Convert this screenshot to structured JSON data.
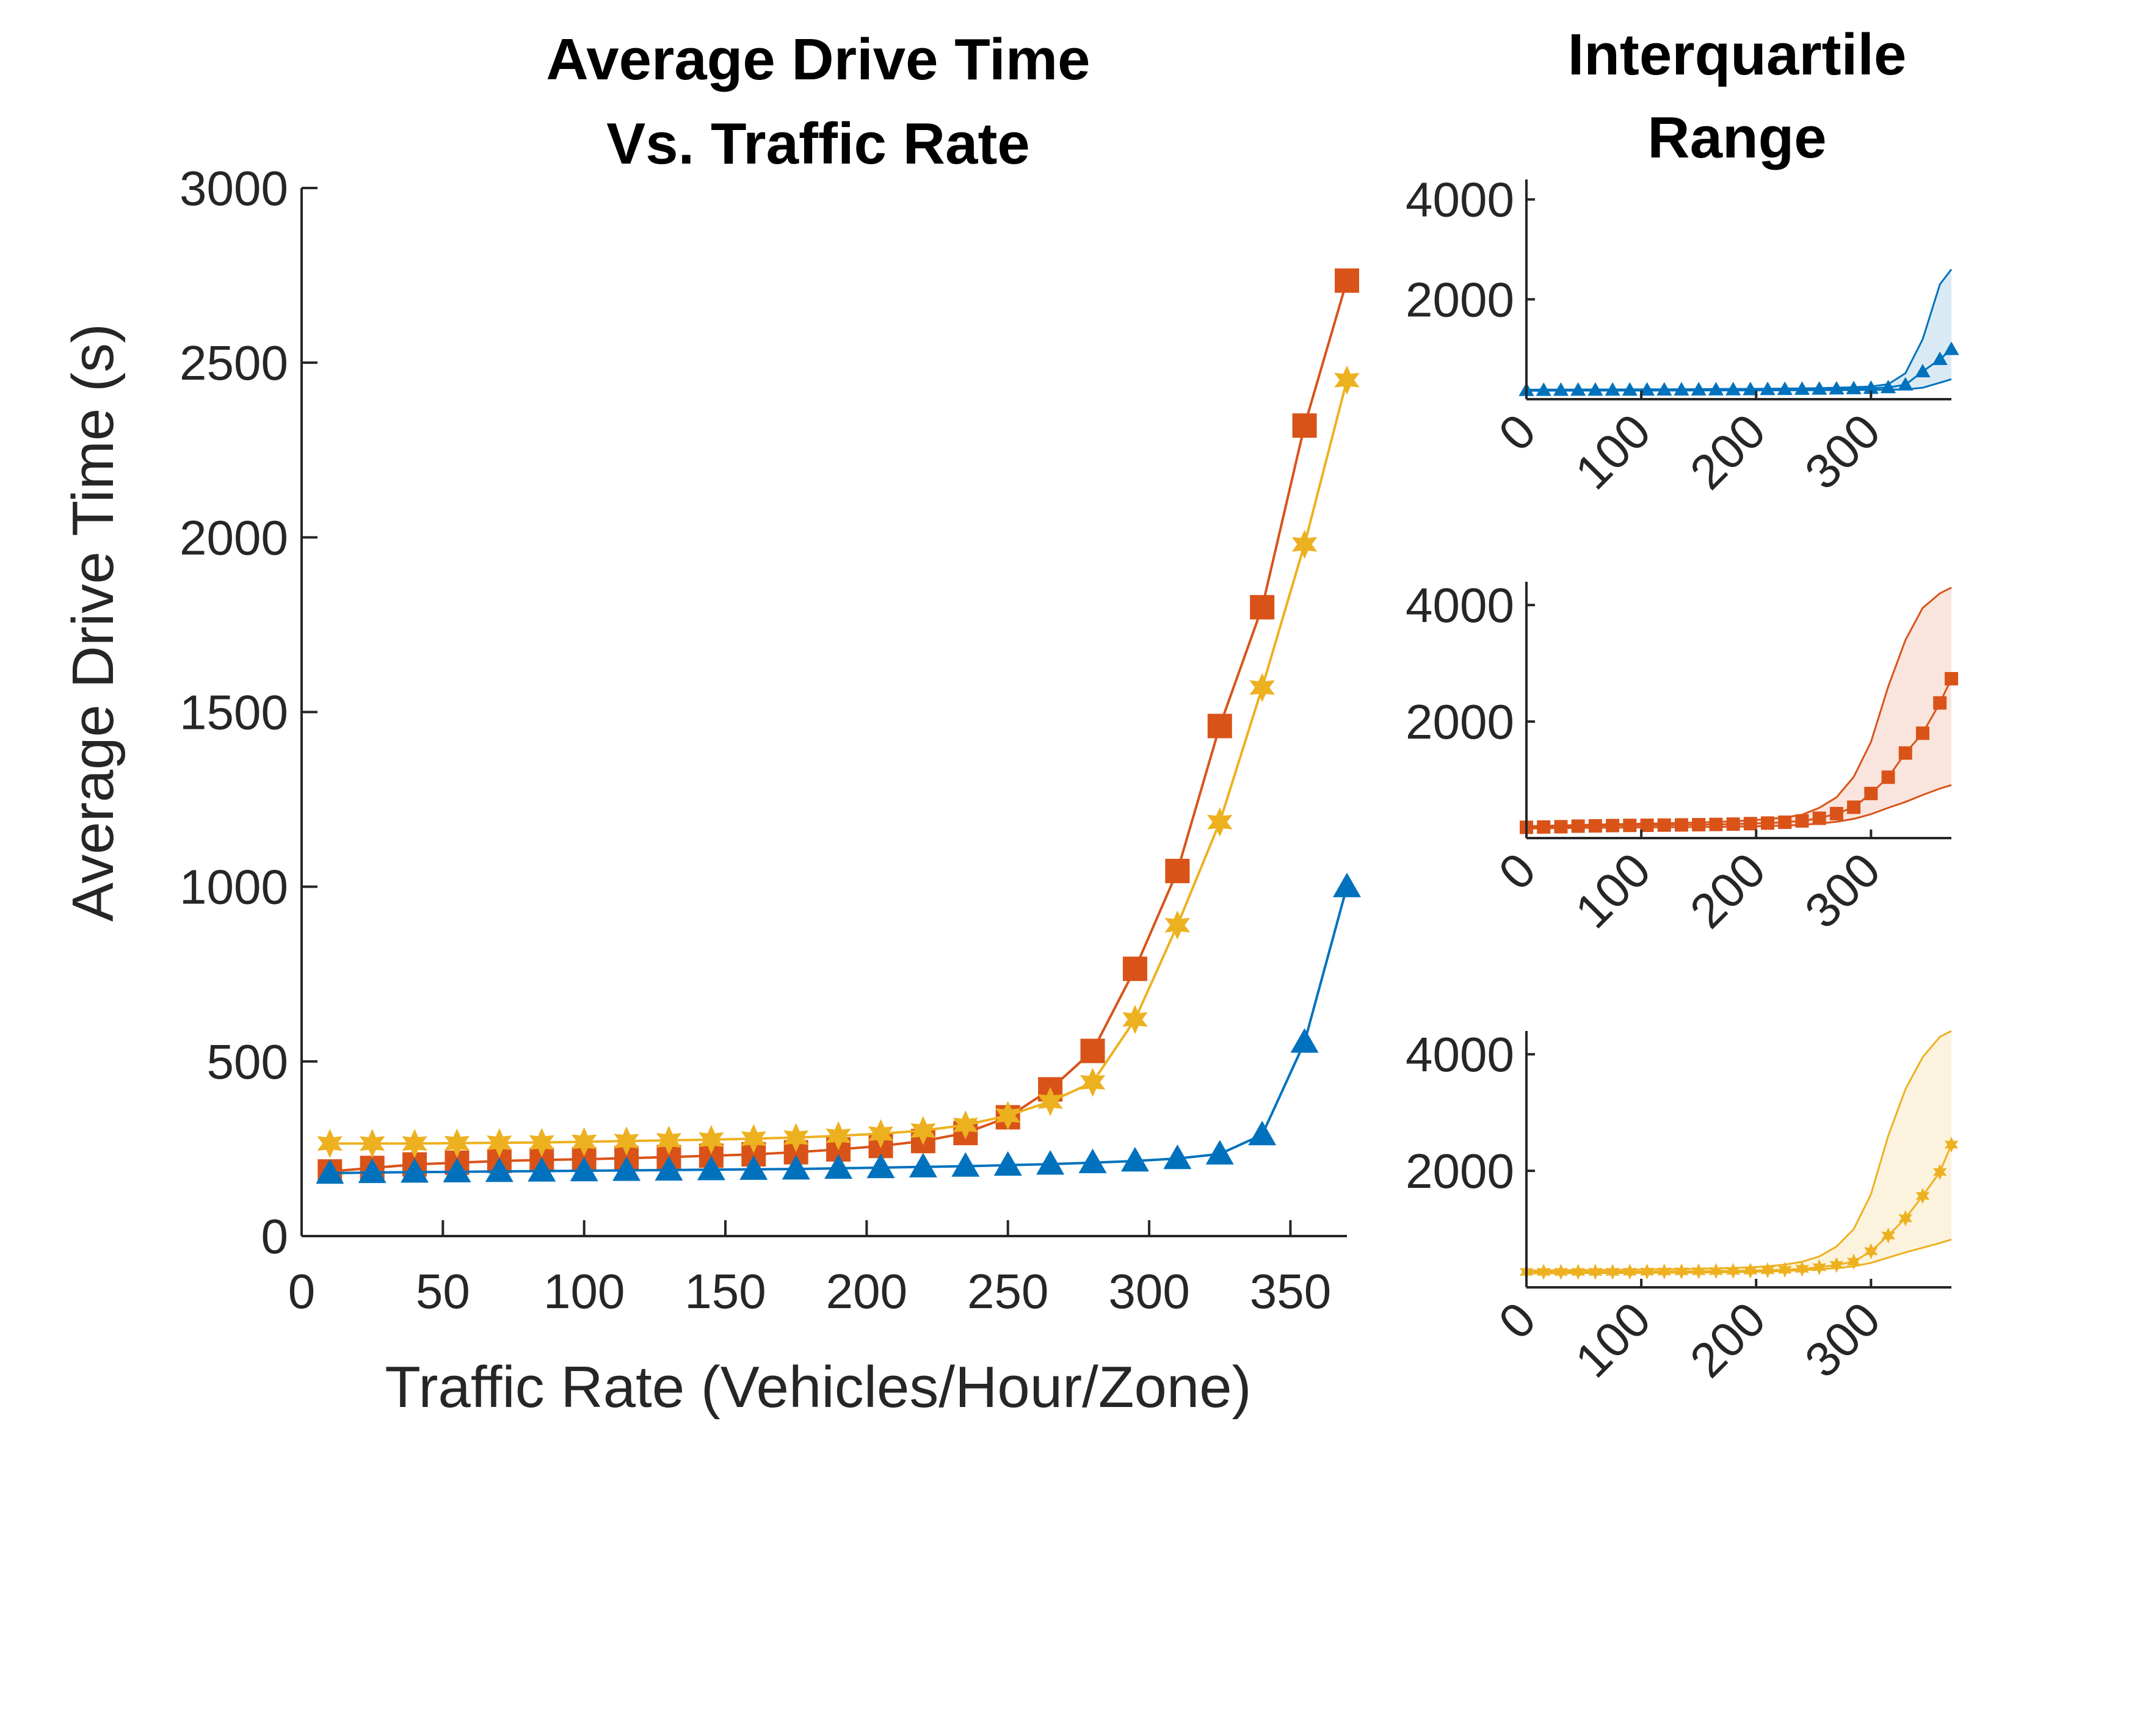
{
  "colors": {
    "blue": "#0072BD",
    "orange": "#D95319",
    "yellow": "#EDB120",
    "axis": "#262626"
  },
  "main_title": {
    "line1": "Average Drive Time",
    "line2": "Vs. Traffic Rate"
  },
  "side_title": {
    "line1": "Interquartile",
    "line2": "Range"
  },
  "chart_data": [
    {
      "type": "line",
      "title": "Average Drive Time Vs. Traffic Rate",
      "xlabel": "Traffic Rate (Vehicles/Hour/Zone)",
      "ylabel": "Average Drive Time (s)",
      "xlim": [
        0,
        370
      ],
      "ylim": [
        0,
        3000
      ],
      "xticks": [
        0,
        50,
        100,
        150,
        200,
        250,
        300,
        350
      ],
      "yticks": [
        0,
        500,
        1000,
        1500,
        2000,
        2500,
        3000
      ],
      "x": [
        10,
        25,
        40,
        55,
        70,
        85,
        100,
        115,
        130,
        145,
        160,
        175,
        190,
        205,
        220,
        235,
        250,
        265,
        280,
        295,
        310,
        325,
        340,
        355,
        370
      ],
      "series": [
        {
          "color": "blue",
          "marker": "triangle",
          "values": [
            180,
            182,
            183,
            184,
            185,
            186,
            187,
            188,
            189,
            190,
            191,
            192,
            194,
            196,
            198,
            200,
            203,
            206,
            210,
            215,
            222,
            235,
            290,
            555,
            1000
          ]
        },
        {
          "color": "orange",
          "marker": "square",
          "values": [
            185,
            195,
            205,
            210,
            215,
            218,
            220,
            223,
            226,
            230,
            234,
            240,
            248,
            258,
            272,
            295,
            340,
            420,
            530,
            765,
            1045,
            1460,
            1800,
            2320,
            2735
          ]
        },
        {
          "color": "yellow",
          "marker": "hexagram",
          "values": [
            265,
            265,
            265,
            266,
            267,
            268,
            270,
            272,
            274,
            276,
            279,
            282,
            287,
            293,
            302,
            318,
            345,
            385,
            440,
            620,
            890,
            1185,
            1570,
            1980,
            2450
          ]
        }
      ]
    },
    {
      "type": "area",
      "title": "Interquartile Range",
      "xlim": [
        0,
        370
      ],
      "ylim": [
        0,
        4400
      ],
      "xticks": [
        0,
        100,
        200,
        300
      ],
      "yticks": [
        2000,
        4000
      ],
      "x": [
        0,
        15,
        30,
        45,
        60,
        75,
        90,
        105,
        120,
        135,
        150,
        165,
        180,
        195,
        210,
        225,
        240,
        255,
        270,
        285,
        300,
        315,
        330,
        345,
        360,
        370
      ],
      "panels": [
        {
          "color": "blue",
          "marker": "triangle",
          "mean": [
            180,
            182,
            183,
            184,
            185,
            186,
            187,
            188,
            189,
            190,
            191,
            192,
            194,
            196,
            198,
            200,
            203,
            206,
            210,
            215,
            222,
            235,
            290,
            555,
            800,
            1000
          ],
          "q1": [
            170,
            170,
            171,
            171,
            172,
            172,
            173,
            173,
            174,
            174,
            175,
            175,
            176,
            176,
            177,
            178,
            179,
            180,
            182,
            184,
            186,
            190,
            195,
            230,
            330,
            400
          ],
          "q3": [
            190,
            192,
            193,
            194,
            195,
            196,
            197,
            198,
            199,
            200,
            202,
            204,
            206,
            208,
            210,
            213,
            217,
            222,
            230,
            240,
            255,
            300,
            520,
            1200,
            2300,
            2600
          ]
        },
        {
          "color": "orange",
          "marker": "square",
          "mean": [
            185,
            190,
            195,
            205,
            210,
            215,
            218,
            220,
            223,
            226,
            230,
            234,
            240,
            248,
            258,
            272,
            295,
            340,
            420,
            530,
            765,
            1045,
            1460,
            1800,
            2320,
            2735
          ],
          "q1": [
            165,
            168,
            172,
            175,
            178,
            180,
            182,
            184,
            186,
            188,
            190,
            192,
            196,
            200,
            206,
            215,
            228,
            250,
            280,
            330,
            410,
            520,
            620,
            740,
            850,
            910
          ],
          "q3": [
            205,
            210,
            218,
            225,
            232,
            238,
            243,
            248,
            254,
            260,
            268,
            276,
            288,
            305,
            325,
            355,
            400,
            520,
            700,
            1050,
            1650,
            2600,
            3400,
            3950,
            4200,
            4300
          ]
        },
        {
          "color": "yellow",
          "marker": "hexagram",
          "mean": [
            265,
            265,
            265,
            265,
            266,
            267,
            268,
            270,
            272,
            274,
            276,
            279,
            282,
            287,
            293,
            302,
            318,
            345,
            385,
            440,
            620,
            890,
            1185,
            1570,
            1980,
            2450
          ],
          "q1": [
            240,
            241,
            242,
            243,
            244,
            245,
            246,
            248,
            250,
            252,
            254,
            256,
            260,
            264,
            270,
            280,
            292,
            310,
            330,
            360,
            420,
            510,
            600,
            680,
            760,
            820
          ],
          "q3": [
            290,
            292,
            294,
            296,
            298,
            300,
            303,
            306,
            310,
            314,
            318,
            324,
            332,
            345,
            362,
            390,
            440,
            530,
            700,
            1000,
            1600,
            2600,
            3400,
            3950,
            4300,
            4400
          ]
        }
      ]
    }
  ]
}
